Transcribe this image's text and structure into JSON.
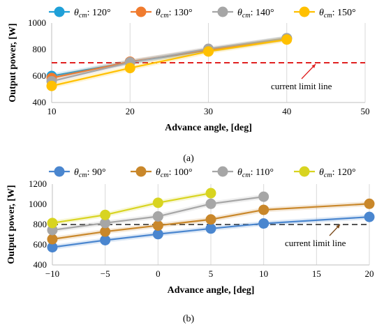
{
  "chart_data": [
    {
      "type": "line",
      "caption": "(a)",
      "xlabel": "Advance angle, [deg]",
      "ylabel": "Output power, [W]",
      "xlim": [
        10,
        50
      ],
      "ylim": [
        400,
        1000
      ],
      "xticks": [
        10,
        20,
        30,
        40,
        50
      ],
      "yticks": [
        400,
        600,
        800,
        1000
      ],
      "grid": "vertical",
      "legend_position": "top",
      "legend_symbol": "θ",
      "legend_subscript": "cm",
      "series": [
        {
          "name": "120°",
          "color": "#1fa0d8",
          "x": [
            10,
            20,
            30,
            40
          ],
          "y": [
            600,
            705,
            795,
            885
          ]
        },
        {
          "name": "130°",
          "color": "#f07b2e",
          "x": [
            10,
            20,
            30,
            40
          ],
          "y": [
            585,
            708,
            797,
            883
          ]
        },
        {
          "name": "140°",
          "color": "#a6a6a6",
          "x": [
            10,
            20,
            30,
            40
          ],
          "y": [
            560,
            703,
            805,
            885
          ]
        },
        {
          "name": "150°",
          "color": "#ffc000",
          "x": [
            10,
            20,
            30,
            40
          ],
          "y": [
            525,
            660,
            785,
            875
          ]
        }
      ],
      "limit_line": {
        "value": 700,
        "color": "#e02020",
        "label": "current limit line"
      }
    },
    {
      "type": "line",
      "caption": "(b)",
      "xlabel": "Advance angle, [deg]",
      "ylabel": "Output power, [W]",
      "xlim": [
        -10,
        20
      ],
      "ylim": [
        400,
        1200
      ],
      "xticks": [
        -10,
        -5,
        0,
        5,
        10,
        15,
        20
      ],
      "xtick_labels": [
        "−10",
        "−5",
        "0",
        "5",
        "10",
        "15",
        "20"
      ],
      "yticks": [
        400,
        600,
        800,
        1000,
        1200
      ],
      "grid": "vertical",
      "legend_position": "top",
      "legend_symbol": "θ",
      "legend_subscript": "cm",
      "series": [
        {
          "name": "90°",
          "color": "#4a86cf",
          "x": [
            -10,
            -5,
            0,
            5,
            10,
            20
          ],
          "y": [
            575,
            645,
            705,
            760,
            810,
            875
          ]
        },
        {
          "name": "100°",
          "color": "#c9872a",
          "x": [
            -10,
            -5,
            0,
            5,
            10,
            20
          ],
          "y": [
            655,
            730,
            790,
            850,
            945,
            1005
          ]
        },
        {
          "name": "110°",
          "color": "#a6a6a6",
          "x": [
            -10,
            -5,
            0,
            5,
            10
          ],
          "y": [
            745,
            815,
            880,
            1005,
            1075
          ]
        },
        {
          "name": "120°",
          "color": "#d8d420",
          "x": [
            -10,
            -5,
            0,
            5
          ],
          "y": [
            815,
            895,
            1015,
            1110
          ]
        }
      ],
      "limit_line": {
        "value": 800,
        "color": "#555555",
        "label": "current limit line"
      }
    }
  ]
}
